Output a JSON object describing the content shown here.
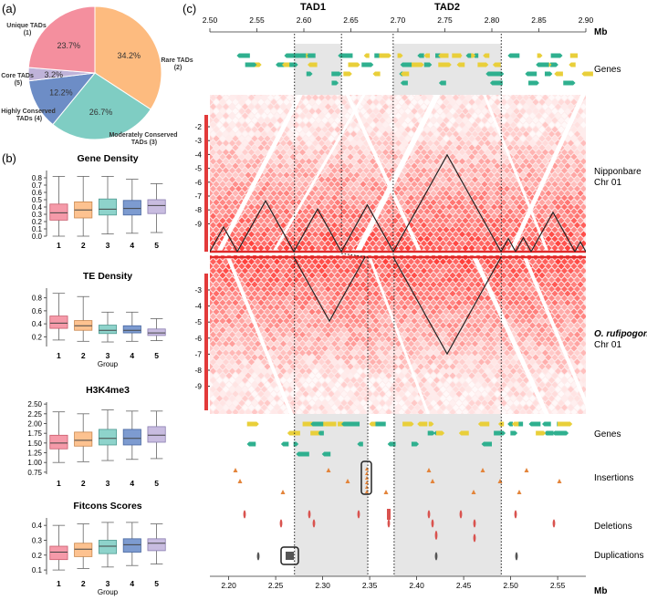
{
  "panel_labels": {
    "a": "(a)",
    "b": "(b)",
    "c": "(c)"
  },
  "chart_data": [
    {
      "type": "pie",
      "id": "tad-categories",
      "slices": [
        {
          "name": "Rare TADs",
          "label_lines": [
            "Rare TADs",
            "(2)"
          ],
          "value": 34.2,
          "pct": "34.2%",
          "color": "#FDBB7F"
        },
        {
          "name": "Moderately Conserved TADs",
          "label_lines": [
            "Moderately Conserved",
            "TADs (3)"
          ],
          "value": 26.7,
          "pct": "26.7%",
          "color": "#7FCDC3"
        },
        {
          "name": "Highly Conserved TADs",
          "label_lines": [
            "Highly Conserved",
            "TADs (4)"
          ],
          "value": 12.2,
          "pct": "12.2%",
          "color": "#6D8DC6"
        },
        {
          "name": "Core TADs",
          "label_lines": [
            "Core TADs",
            "(5)"
          ],
          "value": 3.2,
          "pct": "3.2%",
          "color": "#BFB3D9"
        },
        {
          "name": "Unique TADs",
          "label_lines": [
            "Unique TADs",
            "(1)"
          ],
          "value": 23.7,
          "pct": "23.7%",
          "color": "#F48F9E"
        }
      ]
    },
    {
      "type": "box",
      "id": "gene-density",
      "title": "Gene Density",
      "categories": [
        "1",
        "2",
        "3",
        "4",
        "5"
      ],
      "xlabel": "",
      "ylim": [
        0,
        0.9
      ],
      "yticks": [
        "0.0",
        "0.1",
        "0.2",
        "0.3",
        "0.4",
        "0.5",
        "0.6",
        "0.7",
        "0.8"
      ],
      "ytick_values": [
        0,
        0.1,
        0.2,
        0.3,
        0.4,
        0.5,
        0.6,
        0.7,
        0.8
      ],
      "boxes": [
        {
          "min": 0.0,
          "q1": 0.22,
          "median": 0.32,
          "q3": 0.44,
          "max": 0.82
        },
        {
          "min": 0.0,
          "q1": 0.25,
          "median": 0.36,
          "q3": 0.47,
          "max": 0.82
        },
        {
          "min": 0.03,
          "q1": 0.29,
          "median": 0.37,
          "q3": 0.51,
          "max": 0.82
        },
        {
          "min": 0.04,
          "q1": 0.29,
          "median": 0.38,
          "q3": 0.49,
          "max": 0.78
        },
        {
          "min": 0.05,
          "q1": 0.31,
          "median": 0.42,
          "q3": 0.5,
          "max": 0.72
        }
      ]
    },
    {
      "type": "box",
      "id": "te-density",
      "title": "TE Density",
      "categories": [
        "1",
        "2",
        "3",
        "4",
        "5"
      ],
      "xlabel": "Group",
      "ylim": [
        0.05,
        0.95
      ],
      "yticks": [
        "0.2",
        "0.4",
        "0.6",
        "0.8"
      ],
      "ytick_values": [
        0.2,
        0.4,
        0.6,
        0.8
      ],
      "boxes": [
        {
          "min": 0.15,
          "q1": 0.33,
          "median": 0.41,
          "q3": 0.52,
          "max": 0.87
        },
        {
          "min": 0.13,
          "q1": 0.3,
          "median": 0.37,
          "q3": 0.45,
          "max": 0.82
        },
        {
          "min": 0.12,
          "q1": 0.25,
          "median": 0.3,
          "q3": 0.38,
          "max": 0.58
        },
        {
          "min": 0.13,
          "q1": 0.26,
          "median": 0.3,
          "q3": 0.37,
          "max": 0.58
        },
        {
          "min": 0.14,
          "q1": 0.22,
          "median": 0.26,
          "q3": 0.32,
          "max": 0.48
        }
      ]
    },
    {
      "type": "box",
      "id": "h3k4me3",
      "title": "H3K4me3",
      "categories": [
        "1",
        "2",
        "3",
        "4",
        "5"
      ],
      "xlabel": "",
      "ylim": [
        0.7,
        2.55
      ],
      "yticks": [
        "0.75",
        "1.00",
        "1.25",
        "1.50",
        "1.75",
        "2.00",
        "2.25",
        "2.50"
      ],
      "ytick_values": [
        0.75,
        1.0,
        1.25,
        1.5,
        1.75,
        2.0,
        2.25,
        2.5
      ],
      "boxes": [
        {
          "min": 1.0,
          "q1": 1.35,
          "median": 1.5,
          "q3": 1.7,
          "max": 2.3
        },
        {
          "min": 1.02,
          "q1": 1.42,
          "median": 1.57,
          "q3": 1.78,
          "max": 2.25
        },
        {
          "min": 1.05,
          "q1": 1.45,
          "median": 1.62,
          "q3": 1.85,
          "max": 2.35
        },
        {
          "min": 1.08,
          "q1": 1.45,
          "median": 1.62,
          "q3": 1.85,
          "max": 2.32
        },
        {
          "min": 1.1,
          "q1": 1.52,
          "median": 1.7,
          "q3": 1.92,
          "max": 2.32
        }
      ]
    },
    {
      "type": "box",
      "id": "fitcons",
      "title": "Fitcons Scores",
      "categories": [
        "1",
        "2",
        "3",
        "4",
        "5"
      ],
      "xlabel": "Group",
      "ylim": [
        0.07,
        0.45
      ],
      "yticks": [
        "0.1",
        "0.2",
        "0.3",
        "0.4"
      ],
      "ytick_values": [
        0.1,
        0.2,
        0.3,
        0.4
      ],
      "boxes": [
        {
          "min": 0.1,
          "q1": 0.17,
          "median": 0.22,
          "q3": 0.26,
          "max": 0.4
        },
        {
          "min": 0.11,
          "q1": 0.19,
          "median": 0.24,
          "q3": 0.28,
          "max": 0.41
        },
        {
          "min": 0.12,
          "q1": 0.21,
          "median": 0.26,
          "q3": 0.3,
          "max": 0.42
        },
        {
          "min": 0.13,
          "q1": 0.22,
          "median": 0.27,
          "q3": 0.31,
          "max": 0.42
        },
        {
          "min": 0.14,
          "q1": 0.23,
          "median": 0.28,
          "q3": 0.31,
          "max": 0.41
        }
      ]
    },
    {
      "type": "heatmap",
      "id": "tad-comparison",
      "top_axis": {
        "unit": "Mb",
        "range": [
          2.5,
          2.9
        ],
        "ticks": [
          "2.50",
          "2.55",
          "2.60",
          "2.65",
          "2.70",
          "2.75",
          "2.80",
          "2.85",
          "2.90"
        ]
      },
      "bottom_axis": {
        "unit": "Mb",
        "range": [
          2.18,
          2.58
        ],
        "ticks": [
          "2.20",
          "2.25",
          "2.30",
          "2.35",
          "2.40",
          "2.45",
          "2.50",
          "2.55"
        ]
      },
      "tad_labels": [
        "TAD1",
        "TAD2"
      ],
      "tad1_top_range": [
        2.59,
        2.64
      ],
      "tad2_top_range": [
        2.695,
        2.81
      ],
      "tad1_bottom_range": [
        2.27,
        2.348
      ],
      "tad2_bottom_range": [
        2.376,
        2.49
      ],
      "top_scale_ticks": [
        "2",
        "3",
        "4",
        "5",
        "6",
        "7",
        "8",
        "9"
      ],
      "bottom_scale_ticks": [
        "3",
        "4",
        "5",
        "6",
        "7",
        "8",
        "9"
      ],
      "top_tracks": [
        "Genes"
      ],
      "top_heatmap_label": [
        "Nipponbare",
        "Chr 01"
      ],
      "bottom_heatmap_label": [
        "O. rufipogon",
        "Chr 01"
      ],
      "bottom_tracks": [
        "Genes",
        "Insertions",
        "Deletions",
        "Duplications"
      ],
      "gene_colors": [
        "#2FB08F",
        "#E9CF3A"
      ],
      "insertion_color": "#E3843A",
      "deletion_color": "#D9534F",
      "duplication_color": "#555555"
    }
  ]
}
